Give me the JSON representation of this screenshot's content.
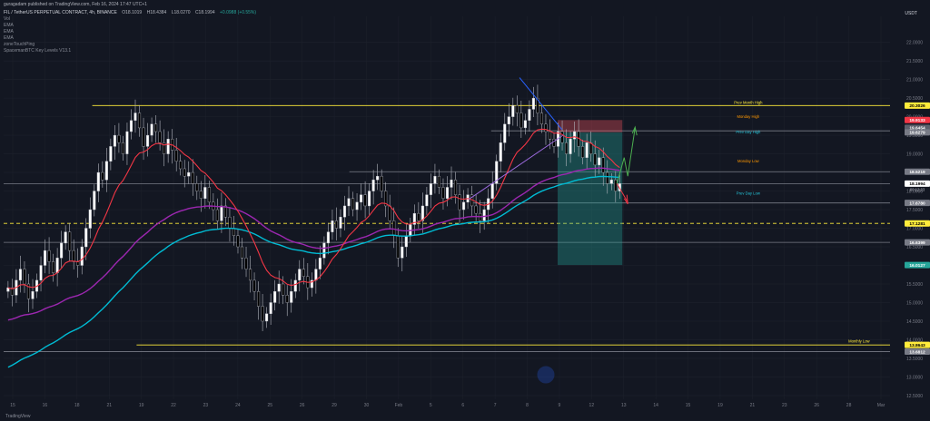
{
  "header": {
    "published": "guragadam published on TradingView.com, Feb 16, 2024 17:47 UTC+1",
    "currency": "USDT"
  },
  "legend": {
    "symbol": "FIL / TetherUS PERPETUAL CONTRACT, 4h, BINANCE",
    "open": "O18.1019",
    "high": "H18.4384",
    "low": "L18.0270",
    "close": "C18.1994",
    "change": "+0.0988 (+0.55%)",
    "indicators": [
      "Vol",
      "EMA",
      "EMA",
      "EMA",
      "zoneTouchPing",
      "SpacemanBTC Key Levels V13.1"
    ]
  },
  "footer": {
    "brand": "TradingView"
  },
  "colors": {
    "bg": "#131722",
    "grid": "#1e222d",
    "up": "#ffffff",
    "down": "#000000",
    "ema_fast": "#f23645",
    "ema_mid": "#9c27b0",
    "ema_slow": "#00bcd4",
    "level_yellow": "#ffeb3b",
    "level_gray": "#787b86",
    "long_profit": "#26a69a",
    "long_stop": "#f7525f",
    "arrow_up": "#4caf50",
    "arrow_down": "#f23645",
    "trend_line": "#2962ff"
  },
  "chart_data": {
    "type": "candlestick",
    "y_range": [
      12.4,
      22.7
    ],
    "y_ticks": [
      "22.0000",
      "21.5000",
      "21.0000",
      "20.5000",
      "20.0000",
      "19.5000",
      "19.0000",
      "18.5000",
      "18.0000",
      "17.5000",
      "17.0000",
      "16.5000",
      "16.0000",
      "15.5000",
      "15.0000",
      "14.5000",
      "14.0000",
      "13.5000",
      "13.0000",
      "12.5000"
    ],
    "x_labels": [
      "15",
      "16",
      "18",
      "21",
      "19",
      "22",
      "23",
      "24",
      "25",
      "26",
      "29",
      "30",
      "Feb",
      "5",
      "6",
      "7",
      "8",
      "9",
      "12",
      "13",
      "14",
      "15",
      "19",
      "21",
      "23",
      "26",
      "28",
      "Mar"
    ],
    "price_labels": [
      {
        "text": "20.3026",
        "price": 20.3,
        "color": "#ffeb3b",
        "textColor": "#000000"
      },
      {
        "text": "19.9133",
        "price": 19.91,
        "color": "#f23645",
        "textColor": "#ffffff"
      },
      {
        "text": "19.6454",
        "price": 19.7,
        "color": "#5d606b",
        "textColor": "#ffffff"
      },
      {
        "text": "19.6279",
        "price": 19.58,
        "color": "#787b86",
        "textColor": "#ffffff"
      },
      {
        "text": "18.5219",
        "price": 18.52,
        "color": "#787b86",
        "textColor": "#ffffff"
      },
      {
        "text": "18.1994",
        "price": 18.2,
        "color": "#ffffff",
        "textColor": "#000000"
      },
      {
        "text": "17.6780",
        "price": 17.68,
        "color": "#787b86",
        "textColor": "#ffffff"
      },
      {
        "text": "17.1281",
        "price": 17.13,
        "color": "#ffeb3b",
        "textColor": "#000000"
      },
      {
        "text": "16.6399",
        "price": 16.62,
        "color": "#787b86",
        "textColor": "#ffffff"
      },
      {
        "text": "16.0127",
        "price": 16.01,
        "color": "#26a69a",
        "textColor": "#ffffff"
      },
      {
        "text": "13.8643",
        "price": 13.86,
        "color": "#ffeb3b",
        "textColor": "#000000"
      },
      {
        "text": "13.6812",
        "price": 13.68,
        "color": "#787b86",
        "textColor": "#ffffff"
      }
    ],
    "countdown": "00:12:23",
    "level_annotations": [
      {
        "text": "Prev Month High",
        "price": 20.34,
        "color": "#ffeb3b"
      },
      {
        "text": "Monday High",
        "price": 19.97,
        "color": "#ff9800"
      },
      {
        "text": "Prev Day High",
        "price": 19.55,
        "color": "#26c6da"
      },
      {
        "text": "Monday Low",
        "price": 18.77,
        "color": "#ff9800"
      },
      {
        "text": "Prev Day Low",
        "price": 17.91,
        "color": "#26c6da"
      },
      {
        "text": "Monthly Low",
        "price": 13.92,
        "color": "#ffeb3b"
      }
    ],
    "levels": [
      {
        "price": 20.3,
        "color": "#ffeb3b",
        "from": 0.1,
        "dash": false
      },
      {
        "price": 19.62,
        "color": "#787b86",
        "from": 0.55,
        "dash": false
      },
      {
        "price": 18.52,
        "color": "#787b86",
        "from": 0.39,
        "dash": false
      },
      {
        "price": 18.2,
        "color": "#787b86",
        "from": 0.0,
        "dash": false
      },
      {
        "price": 17.68,
        "color": "#787b86",
        "from": 0.53,
        "dash": false
      },
      {
        "price": 17.13,
        "color": "#ffeb3b",
        "from": 0.0,
        "dash": true
      },
      {
        "price": 16.62,
        "color": "#787b86",
        "from": 0.0,
        "dash": false
      },
      {
        "price": 13.86,
        "color": "#ffeb3b",
        "from": 0.15,
        "dash": false
      },
      {
        "price": 13.68,
        "color": "#787b86",
        "from": 0.0,
        "dash": false
      }
    ],
    "closes": [
      15.4,
      15.2,
      15.6,
      15.9,
      15.5,
      15.1,
      15.3,
      15.6,
      16.0,
      16.4,
      16.1,
      15.8,
      16.2,
      16.6,
      16.9,
      16.4,
      16.1,
      16.0,
      16.5,
      17.0,
      17.5,
      18.0,
      18.5,
      18.3,
      18.8,
      19.2,
      19.5,
      19.3,
      19.0,
      19.6,
      19.9,
      20.1,
      19.7,
      19.2,
      19.5,
      19.8,
      19.6,
      19.3,
      19.0,
      19.4,
      19.1,
      18.8,
      18.6,
      18.4,
      18.5,
      18.2,
      18.0,
      17.8,
      18.1,
      17.7,
      17.5,
      17.2,
      17.6,
      17.3,
      17.0,
      16.8,
      16.5,
      16.2,
      15.9,
      15.6,
      15.3,
      14.9,
      14.5,
      14.7,
      15.0,
      15.3,
      15.5,
      15.2,
      15.0,
      15.3,
      15.6,
      15.9,
      15.7,
      15.4,
      15.6,
      15.9,
      16.2,
      16.6,
      16.9,
      17.2,
      17.0,
      17.3,
      17.6,
      17.8,
      17.5,
      17.7,
      17.9,
      17.6,
      18.0,
      18.3,
      18.4,
      18.0,
      17.6,
      17.2,
      16.8,
      16.2,
      16.5,
      16.8,
      17.1,
      17.4,
      17.2,
      17.6,
      17.9,
      18.2,
      18.4,
      18.1,
      17.8,
      18.1,
      18.3,
      17.9,
      17.5,
      17.7,
      17.9,
      17.6,
      17.4,
      17.2,
      17.5,
      17.8,
      18.2,
      18.8,
      19.3,
      19.8,
      20.0,
      20.3,
      20.1,
      19.7,
      19.9,
      20.2,
      20.5,
      20.1,
      19.8,
      19.6,
      19.4,
      19.2,
      19.6,
      19.3,
      19.0,
      19.4,
      19.6,
      19.2,
      18.9,
      19.3,
      19.0,
      18.7,
      18.9,
      18.5,
      18.2,
      18.3,
      18.0,
      18.2
    ],
    "long_position": {
      "x0": 0.625,
      "x1": 0.698,
      "entry": 19.58,
      "stop": 19.91,
      "target": 16.01
    },
    "trend_line": {
      "x0": 0.582,
      "p0": 21.05,
      "x1": 0.63,
      "p1": 19.65
    },
    "support_line": {
      "x0": 0.525,
      "p0": 17.78,
      "x1": 0.631,
      "p1": 19.5
    }
  }
}
